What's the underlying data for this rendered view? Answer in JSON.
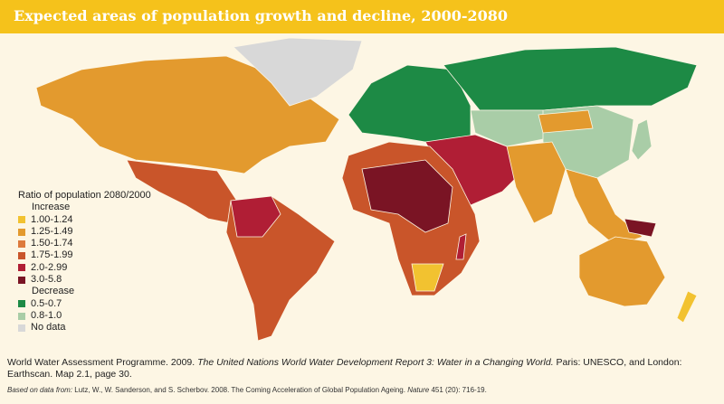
{
  "title": "Expected areas of population growth and decline, 2000-2080",
  "legend": {
    "title": "Ratio of population 2080/2000",
    "increase_label": "Increase",
    "decrease_label": "Decrease",
    "items": [
      {
        "label": "1.00-1.24",
        "color": "#f2c230"
      },
      {
        "label": "1.25-1.49",
        "color": "#e39a2e"
      },
      {
        "label": "1.50-1.74",
        "color": "#dd7a3c"
      },
      {
        "label": "1.75-1.99",
        "color": "#c9552a"
      },
      {
        "label": "2.0-2.99",
        "color": "#b01e35"
      },
      {
        "label": "3.0-5.8",
        "color": "#7a1424"
      },
      {
        "label": "0.5-0.7",
        "color": "#1d8a45"
      },
      {
        "label": "0.8-1.0",
        "color": "#a9cda7"
      },
      {
        "label": "No data",
        "color": "#d8d8d8"
      }
    ]
  },
  "citation": {
    "part1": "World Water Assessment Programme. 2009. ",
    "italic": "The United Nations World Water Development Report 3: Water in a Changing World.",
    "part2": " Paris: UNESCO, and London: Earthscan. Map 2.1, page 30.",
    "source_prefix": "Based on data from:",
    "source_text": " Lutz, W., W. Sanderson, and S. Scherbov. 2008. The Coming Acceleration of Global Population Ageing. ",
    "source_journal": "Nature",
    "source_ref": " 451 (20): 716-19."
  }
}
